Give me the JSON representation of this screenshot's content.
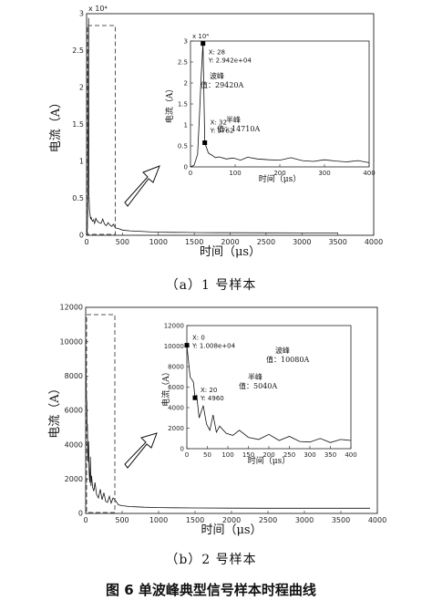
{
  "figure_caption": "图 6 单波峰典型信号样本时程曲线",
  "chart_data": [
    {
      "type": "line",
      "caption": "（a）1 号样本",
      "xlabel": "时间（μs）",
      "ylabel": "电流（A）",
      "xlim": [
        0,
        4000
      ],
      "ylim": [
        0,
        30000
      ],
      "x_ticks": [
        0,
        500,
        1000,
        1500,
        2000,
        2500,
        3000,
        3500,
        4000
      ],
      "y_ticks": [
        0,
        5000,
        10000,
        15000,
        20000,
        25000,
        30000
      ],
      "y_tick_labels": [
        "0",
        "0.5",
        "1",
        "1.5",
        "2",
        "2.5",
        "3"
      ],
      "y_exponent": "x 10⁴",
      "x_data_end": 3500,
      "series": [
        {
          "x": [
            0,
            8,
            16,
            20,
            24,
            28,
            32,
            40,
            48,
            56,
            64,
            80,
            96,
            112,
            128,
            150,
            175,
            200,
            225,
            250,
            275,
            300,
            325,
            350,
            375,
            400,
            450,
            500,
            600,
            700,
            800,
            900,
            1000,
            1200,
            1400,
            1600,
            1800,
            2000,
            2500,
            3000,
            3500
          ],
          "y": [
            0,
            400,
            3000,
            12000,
            22000,
            29420,
            5762,
            3300,
            2800,
            2200,
            2400,
            1900,
            2100,
            1600,
            2300,
            1900,
            1700,
            1600,
            2200,
            1500,
            1300,
            1700,
            1400,
            1200,
            1500,
            1000,
            900,
            700,
            600,
            550,
            500,
            450,
            420,
            400,
            380,
            360,
            350,
            340,
            330,
            320,
            310
          ]
        }
      ],
      "inset": {
        "xlabel": "时间（μs）",
        "ylabel": "电流（A）",
        "xlim": [
          0,
          400
        ],
        "ylim": [
          0,
          30000
        ],
        "x_ticks": [
          0,
          100,
          200,
          300,
          400
        ],
        "y_ticks": [
          0,
          5000,
          10000,
          15000,
          20000,
          25000,
          30000
        ],
        "y_tick_labels": [
          "0",
          "0.5",
          "1",
          "1.5",
          "2",
          "2.5",
          "3"
        ],
        "y_exponent": "x 10⁴",
        "points": [
          {
            "x_label": "X: 28",
            "y_label": "Y: 2.942e+04",
            "x": 28,
            "y": 29420,
            "note_title": "波峰",
            "note_value": "值：29420A"
          },
          {
            "x_label": "X: 32",
            "y_label": "Y: 5762",
            "x": 32,
            "y": 5762,
            "note_title": "半峰",
            "note_value": "值：14710A"
          }
        ]
      }
    },
    {
      "type": "line",
      "caption": "（b）2 号样本",
      "xlabel": "时间（μs）",
      "ylabel": "电流（A）",
      "xlim": [
        0,
        4000
      ],
      "ylim": [
        0,
        12000
      ],
      "x_ticks": [
        0,
        500,
        1000,
        1500,
        2000,
        2500,
        3000,
        3500,
        4000
      ],
      "y_ticks": [
        0,
        2000,
        4000,
        6000,
        8000,
        10000,
        12000
      ],
      "series": [
        {
          "x": [
            0,
            8,
            16,
            20,
            24,
            30,
            40,
            48,
            56,
            64,
            72,
            80,
            96,
            112,
            128,
            150,
            175,
            200,
            225,
            250,
            275,
            300,
            325,
            350,
            375,
            400,
            450,
            500,
            600,
            700,
            800,
            1000,
            1200,
            1500,
            2000,
            2500,
            3000,
            3500,
            3900
          ],
          "y": [
            10080,
            7000,
            6500,
            4960,
            5200,
            3000,
            4200,
            2400,
            1800,
            3300,
            1600,
            2200,
            1500,
            1300,
            1800,
            1100,
            900,
            1400,
            800,
            1200,
            700,
            650,
            1000,
            600,
            900,
            800,
            500,
            450,
            400,
            380,
            360,
            340,
            330,
            320,
            310,
            300,
            300,
            300,
            300
          ]
        }
      ],
      "inset": {
        "xlabel": "时间（μs）",
        "ylabel": "电流（A）",
        "xlim": [
          0,
          400
        ],
        "ylim": [
          0,
          12000
        ],
        "x_ticks": [
          0,
          50,
          100,
          150,
          200,
          250,
          300,
          350,
          400
        ],
        "y_ticks": [
          0,
          2000,
          4000,
          6000,
          8000,
          10000,
          12000
        ],
        "points": [
          {
            "x_label": "X: 0",
            "y_label": "Y: 1.008e+04",
            "x": 0,
            "y": 10080,
            "note_title": "波峰",
            "note_value": "值：10080A"
          },
          {
            "x_label": "X: 20",
            "y_label": "Y: 4960",
            "x": 20,
            "y": 4960,
            "note_title": "半峰",
            "note_value": "值：5040A"
          }
        ]
      }
    }
  ]
}
